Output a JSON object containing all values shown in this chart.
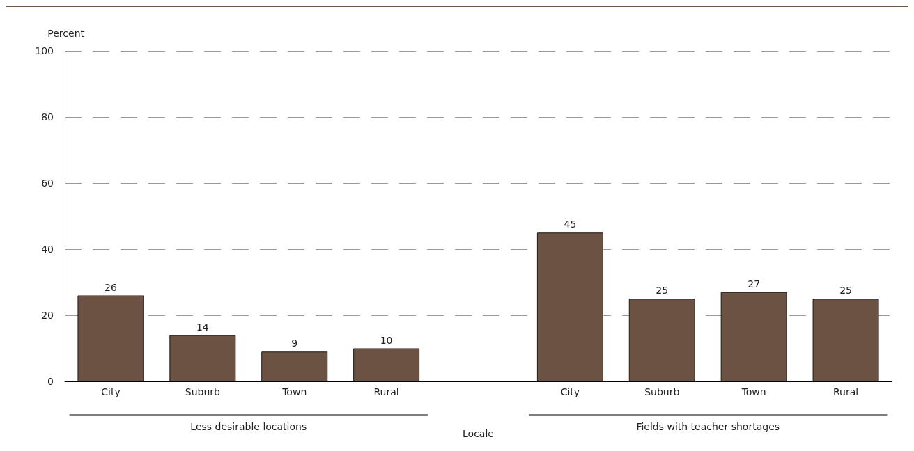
{
  "chart_data": {
    "type": "bar",
    "ylabel": "Percent",
    "xlabel": "Locale",
    "categories": [
      "City",
      "Suburb",
      "Town",
      "Rural",
      null,
      "City",
      "Suburb",
      "Town",
      "Rural"
    ],
    "values": [
      26,
      14,
      9,
      10,
      null,
      45,
      25,
      27,
      25
    ],
    "color": "#6b5242",
    "ylim": [
      0,
      100
    ],
    "yticks": [
      0,
      20,
      40,
      60,
      80,
      100
    ],
    "grid": "y",
    "data_labels": true,
    "annotations": [
      "Less desirable locations",
      "Fields with teacher shortages"
    ]
  }
}
